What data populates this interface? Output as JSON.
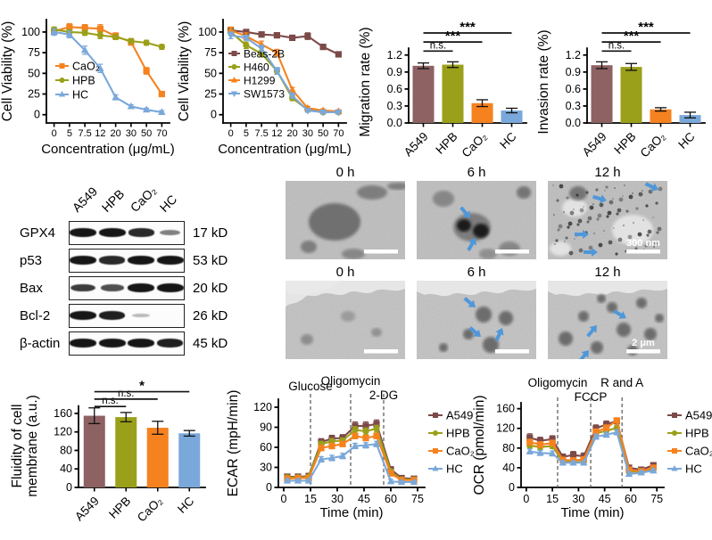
{
  "palette": {
    "maroon": "#8e6163",
    "maroon_dark": "#7c4a48",
    "olive": "#9aa019",
    "orange": "#f5821f",
    "blue": "#7aa8da",
    "axis": "#000000",
    "dashed": "#555555",
    "arrow": "#4f97d9",
    "band": "#161616"
  },
  "chart_data": [
    {
      "id": "viability_nano",
      "type": "line",
      "ylabel": "Cell Viability (%)",
      "xlabel": "Concentration (μg/mL)",
      "categories": [
        "0",
        "5",
        "7.5",
        "12",
        "20",
        "30",
        "50",
        "70"
      ],
      "yticks": [
        0,
        25,
        50,
        75,
        100
      ],
      "ylim": [
        -10,
        115
      ],
      "grid": false,
      "legend_position": "inside-left",
      "series": [
        {
          "name": "CaO₂",
          "color": "orange",
          "marker": "square",
          "values": [
            101,
            106,
            105,
            104,
            95,
            88,
            53,
            25
          ],
          "err": [
            4,
            4,
            4,
            5,
            4,
            4,
            4,
            3
          ]
        },
        {
          "name": "HPB",
          "color": "olive",
          "marker": "circle",
          "values": [
            103,
            100,
            99,
            96,
            94,
            89,
            87,
            82
          ],
          "err": [
            3,
            3,
            3,
            4,
            3,
            3,
            3,
            3
          ]
        },
        {
          "name": "HC",
          "color": "blue",
          "marker": "triangle",
          "values": [
            100,
            97,
            78,
            56,
            21,
            10,
            6,
            3
          ],
          "err": [
            4,
            4,
            5,
            5,
            3,
            2,
            2,
            2
          ]
        }
      ]
    },
    {
      "id": "viability_cells",
      "type": "line",
      "ylabel": "Cell Viability (%)",
      "xlabel": "Concentration (μg/mL)",
      "categories": [
        "0",
        "5",
        "7.5",
        "12",
        "20",
        "30",
        "50",
        "70"
      ],
      "yticks": [
        0,
        25,
        50,
        75,
        100
      ],
      "ylim": [
        -10,
        115
      ],
      "grid": false,
      "legend_position": "inside-left",
      "series": [
        {
          "name": "Beas-2B",
          "color": "maroon_dark",
          "marker": "square",
          "values": [
            102,
            100,
            97,
            96,
            93,
            95,
            82,
            73
          ],
          "err": [
            3,
            3,
            3,
            3,
            3,
            4,
            3,
            3
          ]
        },
        {
          "name": "H460",
          "color": "olive",
          "marker": "circle",
          "values": [
            100,
            84,
            74,
            53,
            20,
            6,
            3,
            3
          ],
          "err": [
            4,
            4,
            4,
            4,
            3,
            2,
            2,
            2
          ]
        },
        {
          "name": "H1299",
          "color": "orange",
          "marker": "triangle",
          "values": [
            102,
            95,
            85,
            75,
            30,
            8,
            5,
            4
          ],
          "err": [
            4,
            4,
            4,
            4,
            3,
            2,
            2,
            2
          ]
        },
        {
          "name": "SW1573",
          "color": "blue",
          "marker": "triangle-down",
          "values": [
            96,
            93,
            80,
            53,
            23,
            5,
            3,
            3
          ],
          "err": [
            4,
            3,
            4,
            4,
            3,
            2,
            2,
            2
          ]
        }
      ]
    },
    {
      "id": "migration",
      "type": "bar",
      "ylabel": "Migration rate (%)",
      "categories": [
        "A549",
        "HPB",
        "CaO₂",
        "HC"
      ],
      "values": [
        1.01,
        1.03,
        0.35,
        0.22
      ],
      "errors": [
        0.05,
        0.05,
        0.06,
        0.04
      ],
      "colors": [
        "maroon",
        "olive",
        "orange",
        "blue"
      ],
      "yticks": [
        0,
        0.3,
        0.6,
        0.9,
        1.2
      ],
      "ytick_labels": [
        "0.0",
        "0.3",
        "0.6",
        "0.9",
        "1.2"
      ],
      "ylim": [
        0,
        1.7
      ],
      "axis_top": 1.32,
      "sig": [
        {
          "from": 0,
          "to": 1,
          "label": "n.s.",
          "y": 1.27
        },
        {
          "from": 0,
          "to": 2,
          "label": "***",
          "y": 1.43
        },
        {
          "from": 0,
          "to": 3,
          "label": "***",
          "y": 1.59
        }
      ]
    },
    {
      "id": "invasion",
      "type": "bar",
      "ylabel": "Invasion rate (%)",
      "categories": [
        "A549",
        "HPB",
        "CaO₂",
        "HC"
      ],
      "values": [
        1.02,
        0.99,
        0.24,
        0.14
      ],
      "errors": [
        0.06,
        0.06,
        0.03,
        0.05
      ],
      "colors": [
        "maroon",
        "olive",
        "orange",
        "blue"
      ],
      "yticks": [
        0,
        0.3,
        0.6,
        0.9,
        1.2
      ],
      "ytick_labels": [
        "0.0",
        "0.3",
        "0.6",
        "0.9",
        "1.2"
      ],
      "ylim": [
        0,
        1.7
      ],
      "axis_top": 1.32,
      "sig": [
        {
          "from": 0,
          "to": 1,
          "label": "n.s.",
          "y": 1.27
        },
        {
          "from": 0,
          "to": 2,
          "label": "***",
          "y": 1.43
        },
        {
          "from": 0,
          "to": 3,
          "label": "***",
          "y": 1.59
        }
      ]
    },
    {
      "id": "fluidity",
      "type": "bar",
      "ylabel": [
        "Fluidity of cell",
        "membrane (a.u.)"
      ],
      "categories": [
        "A549",
        "HPB",
        "CaO₂",
        "HC"
      ],
      "values": [
        155,
        152,
        129,
        117
      ],
      "errors": [
        17,
        10,
        14,
        6
      ],
      "colors": [
        "maroon",
        "olive",
        "orange",
        "blue"
      ],
      "yticks": [
        0,
        40,
        80,
        120,
        160
      ],
      "ylim": [
        0,
        210
      ],
      "axis_top": 176,
      "sig": [
        {
          "from": 0,
          "to": 1,
          "label": "n.s.",
          "y": 175
        },
        {
          "from": 0,
          "to": 2,
          "label": "n.s.",
          "y": 191
        },
        {
          "from": 0,
          "to": 3,
          "label": "*",
          "y": 207
        }
      ]
    },
    {
      "id": "ecar",
      "type": "line",
      "ylabel": "ECAR (mpH/min)",
      "xlabel": "Time (min)",
      "x": [
        2,
        8,
        14,
        21,
        27,
        33,
        40,
        46,
        52,
        60,
        66,
        73
      ],
      "xlim": [
        -3,
        79
      ],
      "xticks": [
        0,
        15,
        30,
        45,
        60,
        75
      ],
      "yticks": [
        0,
        30,
        60,
        90,
        120
      ],
      "ylim": [
        0,
        132
      ],
      "grid": false,
      "legend_position": "right",
      "vlines": [
        {
          "x": 15,
          "label": "Glucose",
          "label_y": 30
        },
        {
          "x": 37.5,
          "label": "Oligomycin",
          "label_y": 24
        },
        {
          "x": 56,
          "label": "2-DG",
          "label_y": 40
        }
      ],
      "series": [
        {
          "name": "A549",
          "color": "maroon_dark",
          "marker": "square",
          "values": [
            16,
            16,
            17,
            68,
            73,
            74,
            92,
            92,
            95,
            27,
            14,
            13
          ],
          "err": [
            4,
            4,
            4,
            5,
            5,
            5,
            6,
            6,
            6,
            4,
            3,
            3
          ]
        },
        {
          "name": "HPB",
          "color": "olive",
          "marker": "circle",
          "values": [
            15,
            15,
            16,
            65,
            69,
            70,
            86,
            84,
            88,
            24,
            12,
            12
          ],
          "err": [
            3,
            3,
            3,
            4,
            4,
            4,
            5,
            5,
            5,
            3,
            3,
            3
          ]
        },
        {
          "name": "CaO₂",
          "color": "orange",
          "marker": "square",
          "values": [
            13,
            14,
            14,
            59,
            62,
            65,
            77,
            74,
            77,
            21,
            11,
            11
          ],
          "err": [
            3,
            3,
            3,
            4,
            4,
            4,
            4,
            4,
            4,
            3,
            3,
            3
          ]
        },
        {
          "name": "HC",
          "color": "blue",
          "marker": "triangle",
          "values": [
            10,
            10,
            10,
            42,
            44,
            47,
            62,
            63,
            65,
            9,
            8,
            8
          ],
          "err": [
            3,
            3,
            3,
            4,
            4,
            4,
            4,
            4,
            4,
            3,
            2,
            2
          ]
        }
      ]
    },
    {
      "id": "ocr",
      "type": "line",
      "ylabel": "OCR (pmol/min)",
      "xlabel": "Time (min)",
      "x": [
        2,
        8,
        15,
        21,
        27,
        33,
        40,
        46,
        52,
        59,
        66,
        73
      ],
      "xlim": [
        -3,
        79
      ],
      "xticks": [
        0,
        15,
        30,
        45,
        60,
        75
      ],
      "yticks": [
        0,
        40,
        80,
        120,
        160
      ],
      "ylim": [
        0,
        172
      ],
      "grid": false,
      "legend_position": "right",
      "vlines": [
        {
          "x": 18,
          "label": "Oligomycin",
          "label_y": 26
        },
        {
          "x": 37,
          "label": "FCCP",
          "label_y": 42
        },
        {
          "x": 55,
          "label": "R and A",
          "label_y": 26
        }
      ],
      "series": [
        {
          "name": "A549",
          "color": "maroon_dark",
          "marker": "square",
          "values": [
            101,
            95,
            98,
            62,
            66,
            63,
            120,
            128,
            135,
            40,
            36,
            45
          ],
          "err": [
            8,
            7,
            7,
            6,
            7,
            7,
            7,
            7,
            6,
            5,
            4,
            5
          ]
        },
        {
          "name": "HPB",
          "color": "olive",
          "marker": "circle",
          "values": [
            85,
            82,
            84,
            52,
            52,
            52,
            110,
            115,
            121,
            32,
            32,
            37
          ],
          "err": [
            5,
            5,
            5,
            5,
            5,
            5,
            6,
            6,
            5,
            4,
            4,
            4
          ]
        },
        {
          "name": "CaO₂",
          "color": "orange",
          "marker": "square",
          "values": [
            92,
            87,
            90,
            56,
            55,
            57,
            113,
            121,
            136,
            36,
            33,
            40
          ],
          "err": [
            6,
            6,
            6,
            5,
            5,
            5,
            6,
            6,
            5,
            4,
            4,
            4
          ]
        },
        {
          "name": "HC",
          "color": "blue",
          "marker": "triangle",
          "values": [
            73,
            70,
            69,
            50,
            50,
            50,
            103,
            107,
            112,
            27,
            30,
            34
          ],
          "err": [
            5,
            5,
            5,
            4,
            4,
            4,
            5,
            5,
            5,
            4,
            4,
            4
          ]
        }
      ]
    }
  ],
  "blot": {
    "columns": [
      "A549",
      "HPB",
      "CaO₂",
      "HC"
    ],
    "rows": [
      {
        "protein": "GPX4",
        "mw": "17 kD",
        "bands": [
          1,
          1,
          0.9,
          0.45
        ]
      },
      {
        "protein": "p53",
        "mw": "53 kD",
        "bands": [
          1,
          0.9,
          1,
          1
        ]
      },
      {
        "protein": "Bax",
        "mw": "20 kD",
        "bands": [
          0.8,
          0.7,
          1,
          1
        ]
      },
      {
        "protein": "Bcl-2",
        "mw": "26 kD",
        "bands": [
          1,
          0.95,
          0.15,
          0
        ]
      },
      {
        "protein": "β-actin",
        "mw": "45 kD",
        "bands": [
          1,
          1,
          1,
          0.95
        ]
      }
    ]
  },
  "tem": {
    "rows": [
      {
        "titles": [
          "0 h",
          "6 h",
          "12 h"
        ],
        "scale_label": "300 nm",
        "arrow_counts": [
          0,
          2,
          4
        ]
      },
      {
        "titles": [
          "0 h",
          "6 h",
          "12 h"
        ],
        "scale_label": "2 μm",
        "arrow_counts": [
          0,
          3,
          3
        ]
      }
    ]
  }
}
